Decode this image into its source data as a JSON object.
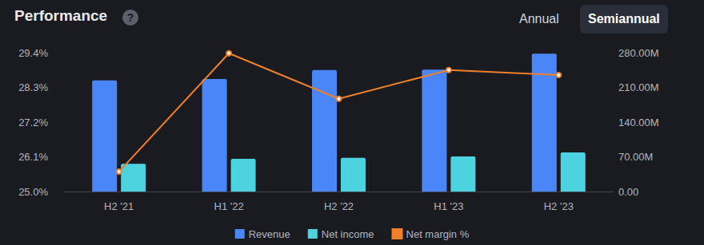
{
  "chart_data": {
    "type": "bar",
    "title": "Performance",
    "categories": [
      "H2 '21",
      "H1 '22",
      "H2 '22",
      "H1 '23",
      "H2 '23"
    ],
    "series": [
      {
        "name": "Revenue",
        "color": "#4a86f7",
        "axis": "y2",
        "values": [
          224,
          227,
          245,
          246,
          278
        ]
      },
      {
        "name": "Net income",
        "color": "#4dd2e0",
        "axis": "y2",
        "values": [
          56,
          66,
          68,
          71,
          79
        ]
      },
      {
        "name": "Net margin %",
        "color": "#f07f2a",
        "type": "line",
        "marker": "circle",
        "values": [
          25.63,
          29.38,
          27.94,
          28.85,
          28.69
        ]
      }
    ],
    "ylim": [
      25.0,
      29.4
    ],
    "yticks": [
      {
        "value": 25.0,
        "label": "25.0%"
      },
      {
        "value": 26.1,
        "label": "26.1%"
      },
      {
        "value": 27.2,
        "label": "27.2%"
      },
      {
        "value": 28.3,
        "label": "28.3%"
      },
      {
        "value": 29.4,
        "label": "29.4%"
      }
    ],
    "y2lim": [
      0,
      280
    ],
    "y2ticks": [
      {
        "value": 0,
        "label": "0.00"
      },
      {
        "value": 70,
        "label": "70.00M"
      },
      {
        "value": 140,
        "label": "140.00M"
      },
      {
        "value": 210,
        "label": "210.00M"
      },
      {
        "value": 280,
        "label": "280.00M"
      }
    ],
    "grid": false,
    "legend": "bottom"
  },
  "header": {
    "help": "?",
    "buttons": [
      "Annual",
      "Semiannual"
    ],
    "selected": "Semiannual"
  }
}
